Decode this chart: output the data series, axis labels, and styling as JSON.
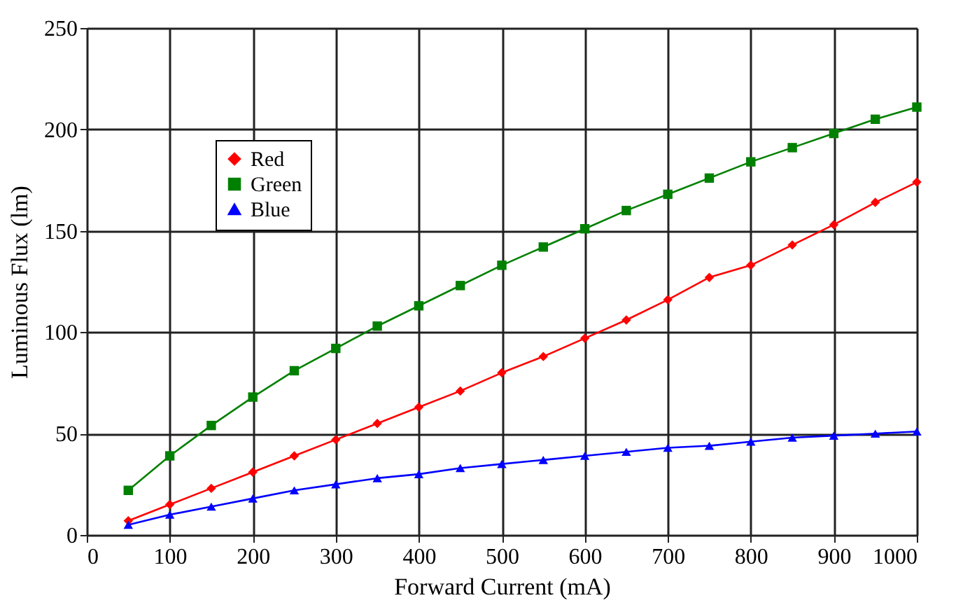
{
  "chart_data": {
    "type": "line",
    "xlabel": "Forward Current (mA)",
    "ylabel": "Luminous  Flux (lm)",
    "x": [
      50,
      100,
      150,
      200,
      250,
      300,
      350,
      400,
      450,
      500,
      550,
      600,
      650,
      700,
      750,
      800,
      850,
      900,
      950,
      1000
    ],
    "series": [
      {
        "name": "Red",
        "color": "#ff0000",
        "marker": "diamond",
        "values": [
          7,
          15,
          23,
          31,
          39,
          47,
          55,
          63,
          71,
          80,
          88,
          97,
          106,
          116,
          127,
          133,
          143,
          153,
          164,
          174
        ]
      },
      {
        "name": "Green",
        "color": "#008000",
        "marker": "square",
        "values": [
          22,
          39,
          54,
          68,
          81,
          92,
          103,
          113,
          123,
          133,
          142,
          151,
          160,
          168,
          176,
          184,
          191,
          198,
          205,
          211
        ]
      },
      {
        "name": "Blue",
        "color": "#0000ff",
        "marker": "triangle",
        "values": [
          5,
          10,
          14,
          18,
          22,
          25,
          28,
          30,
          33,
          35,
          37,
          39,
          41,
          43,
          44,
          46,
          48,
          49,
          50,
          51
        ]
      }
    ],
    "xlim": [
      0,
      1000
    ],
    "xticks": [
      0,
      100,
      200,
      300,
      400,
      500,
      600,
      700,
      800,
      900,
      1000
    ],
    "ylim": [
      0,
      250
    ],
    "yticks": [
      0,
      50,
      100,
      150,
      200,
      250
    ],
    "grid": true,
    "legend": "top left",
    "line_style": "solid"
  }
}
